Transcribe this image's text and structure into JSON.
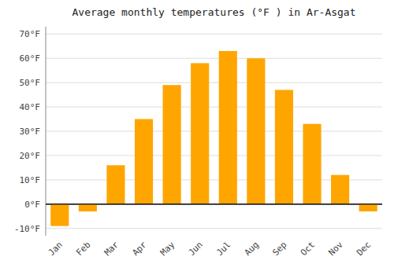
{
  "chart_data": {
    "type": "bar",
    "title": "Average monthly temperatures (°F ) in Ar-Asgat",
    "categories": [
      "Jan",
      "Feb",
      "Mar",
      "Apr",
      "May",
      "Jun",
      "Jul",
      "Aug",
      "Sep",
      "Oct",
      "Nov",
      "Dec"
    ],
    "values": [
      -9,
      -3,
      16,
      35,
      49,
      58,
      63,
      60,
      47,
      33,
      12,
      -3
    ],
    "color": "#FFA500",
    "ylim": [
      -13,
      73
    ],
    "yticks": [
      {
        "value": -10,
        "label": "-10°F"
      },
      {
        "value": 0,
        "label": "0°F"
      },
      {
        "value": 10,
        "label": "10°F"
      },
      {
        "value": 20,
        "label": "20°F"
      },
      {
        "value": 30,
        "label": "30°F"
      },
      {
        "value": 40,
        "label": "40°F"
      },
      {
        "value": 50,
        "label": "50°F"
      },
      {
        "value": 60,
        "label": "60°F"
      },
      {
        "value": 70,
        "label": "70°F"
      }
    ],
    "grid": true
  }
}
